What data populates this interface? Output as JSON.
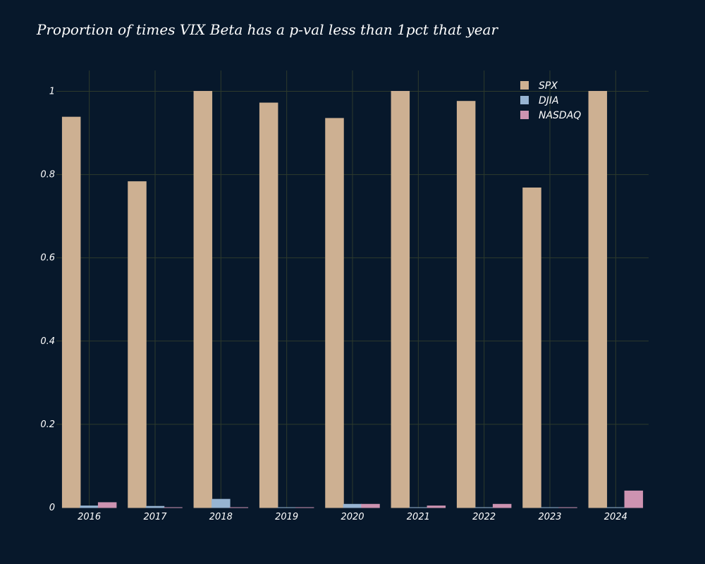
{
  "chart_data": {
    "type": "bar",
    "title": "Proportion of times VIX Beta has a p-val less than 1pct that year",
    "xlabel": "",
    "ylabel": "",
    "categories": [
      "2016",
      "2017",
      "2018",
      "2019",
      "2020",
      "2021",
      "2022",
      "2023",
      "2024"
    ],
    "series": [
      {
        "name": "SPX",
        "color": "#cdb092",
        "values": [
          0.938,
          0.783,
          1.0,
          0.972,
          0.935,
          1.0,
          0.976,
          0.768,
          1.0
        ]
      },
      {
        "name": "DJIA",
        "color": "#97b4d2",
        "values": [
          0.004,
          0.003,
          0.02,
          0.0,
          0.008,
          0.0,
          0.0,
          0.0,
          0.0
        ]
      },
      {
        "name": "NASDAQ",
        "color": "#cd93b1",
        "values": [
          0.012,
          0.0,
          0.0,
          0.0,
          0.008,
          0.004,
          0.008,
          0.0,
          0.04
        ]
      }
    ],
    "ylim": [
      0,
      1.05
    ],
    "yticks": [
      0,
      0.2,
      0.4,
      0.6,
      0.8,
      1
    ],
    "ytick_labels": [
      "0",
      "0.2",
      "0.4",
      "0.6",
      "0.8",
      "1"
    ],
    "grid": true,
    "legend_position": "top-right",
    "colors": {
      "background": "#07182b",
      "grid": "#2e3a2c",
      "text": "#ffffff"
    }
  }
}
